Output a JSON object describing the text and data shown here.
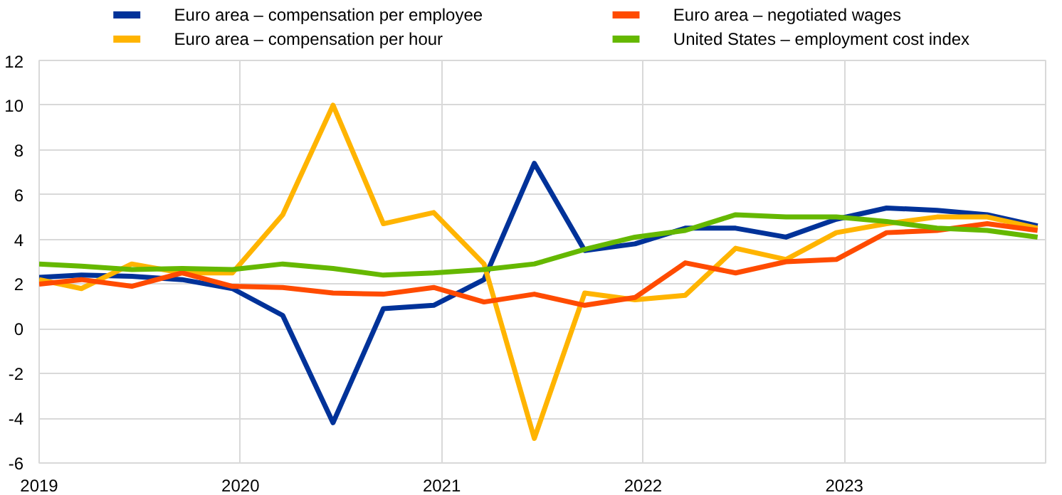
{
  "chart_data": {
    "type": "line",
    "x": [
      2019.0,
      2019.21,
      2019.46,
      2019.71,
      2019.96,
      2020.21,
      2020.46,
      2020.71,
      2020.96,
      2021.21,
      2021.46,
      2021.71,
      2021.96,
      2022.21,
      2022.46,
      2022.71,
      2022.96,
      2023.21,
      2023.46,
      2023.71,
      2023.96
    ],
    "series": [
      {
        "name": "Euro area – compensation per employee",
        "color": "#003299",
        "values": [
          2.3,
          2.4,
          2.35,
          2.2,
          1.8,
          0.6,
          -4.2,
          0.9,
          1.05,
          2.2,
          7.4,
          3.5,
          3.8,
          4.5,
          4.5,
          4.1,
          4.9,
          5.4,
          5.3,
          5.1,
          4.6
        ]
      },
      {
        "name": "Euro area – compensation per hour",
        "color": "#ffb400",
        "values": [
          2.2,
          1.8,
          2.9,
          2.5,
          2.5,
          5.1,
          10.0,
          4.7,
          5.2,
          2.9,
          -4.9,
          1.6,
          1.3,
          1.5,
          3.6,
          3.1,
          4.3,
          4.7,
          5.0,
          5.0,
          4.5
        ]
      },
      {
        "name": "Euro area – negotiated wages",
        "color": "#ff4b00",
        "values": [
          2.0,
          2.2,
          1.9,
          2.5,
          1.9,
          1.85,
          1.6,
          1.55,
          1.85,
          1.2,
          1.55,
          1.05,
          1.4,
          2.95,
          2.5,
          3.0,
          3.1,
          4.3,
          4.4,
          4.7,
          4.4
        ]
      },
      {
        "name": "United States – employment cost index",
        "color": "#65b800",
        "values": [
          2.9,
          2.8,
          2.65,
          2.7,
          2.65,
          2.9,
          2.7,
          2.4,
          2.5,
          2.65,
          2.9,
          3.55,
          4.1,
          4.4,
          5.1,
          5.0,
          5.0,
          4.8,
          4.5,
          4.4,
          4.1
        ]
      }
    ],
    "xlim": [
      2019,
      2024
    ],
    "xticks": [
      2019,
      2020,
      2021,
      2022,
      2023
    ],
    "ylim": [
      -6,
      12
    ],
    "yticks": [
      -6,
      -4,
      -2,
      0,
      2,
      4,
      6,
      8,
      10,
      12
    ],
    "grid": true,
    "legend": "top",
    "marker": "none",
    "line_style": "solid"
  }
}
